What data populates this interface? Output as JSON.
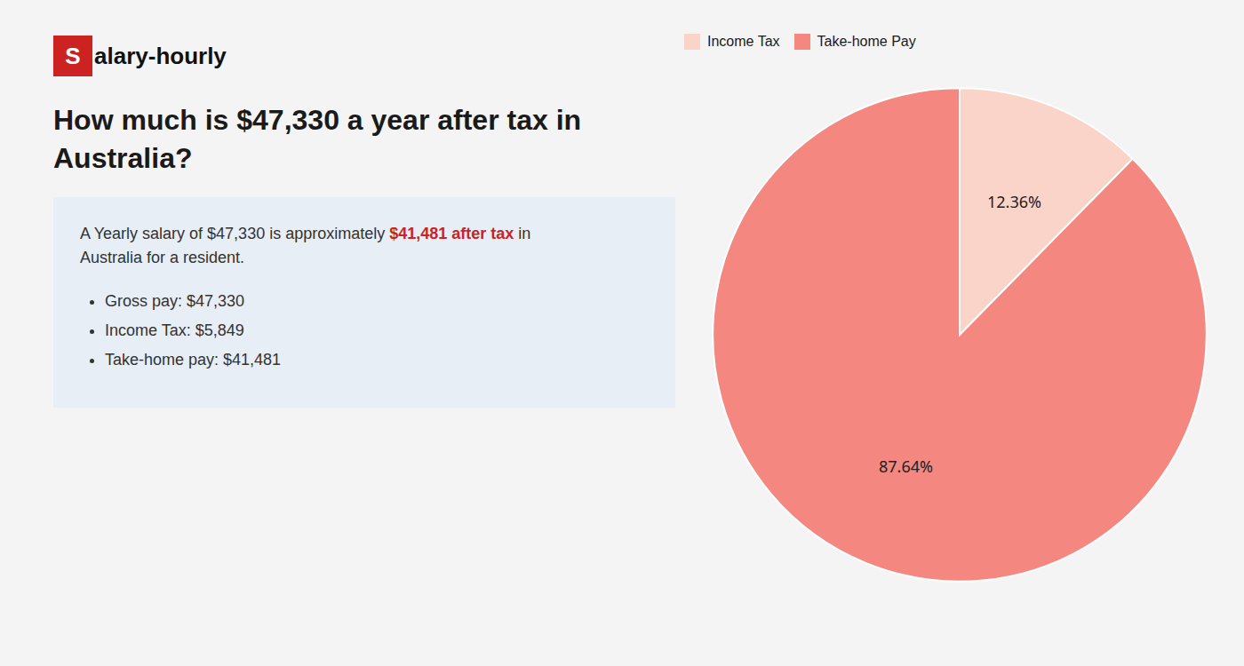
{
  "chart_data": {
    "type": "pie",
    "title": "How much is $47,330 a year after tax in Australia?",
    "categories": [
      "Income Tax",
      "Take-home Pay"
    ],
    "values": [
      12.36,
      87.64
    ],
    "value_labels": [
      "12.36%",
      "87.64%"
    ],
    "colors": [
      "#fad4c8",
      "#f48880"
    ],
    "data_labels": true,
    "legend": "top",
    "annotations": [
      "S",
      "alary-hourly",
      "A Yearly salary of $47,330 is approximately ",
      "$41,481 after tax",
      " in",
      "Australia for a resident.",
      "Gross pay: $47,330",
      "Income Tax: $5,849",
      "Take-home pay: $41,481"
    ]
  }
}
